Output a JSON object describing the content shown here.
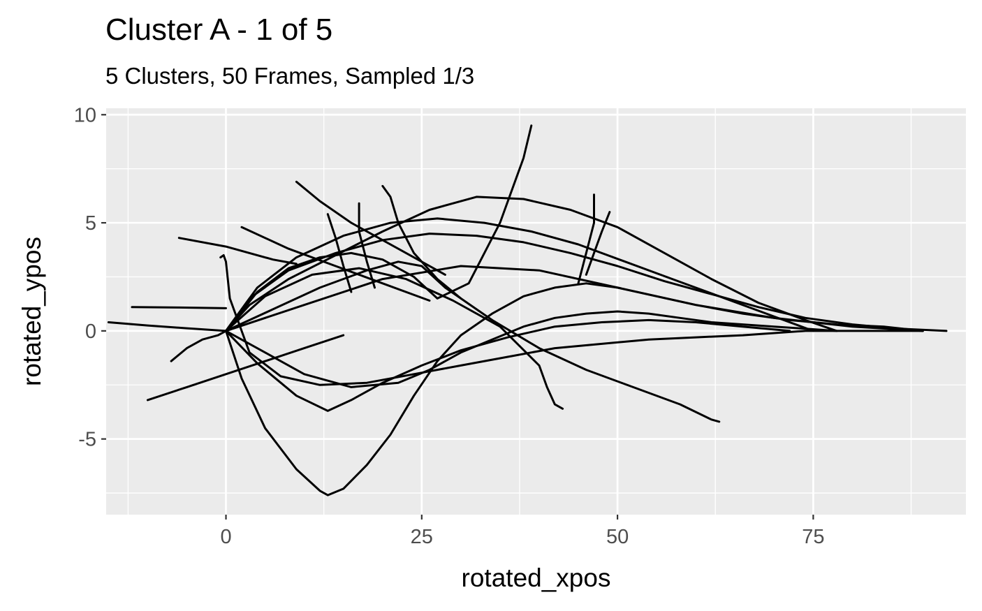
{
  "chart_data": {
    "type": "line",
    "title": "Cluster A - 1 of 5",
    "subtitle": "5 Clusters, 50 Frames, Sampled 1/3",
    "xlabel": "rotated_xpos",
    "ylabel": "rotated_ypos",
    "xlim": [
      -15.3,
      94.5
    ],
    "ylim": [
      -8.5,
      10.3
    ],
    "x_ticks": [
      0,
      25,
      50,
      75
    ],
    "x_tick_labels": [
      "0",
      "25",
      "50",
      "75"
    ],
    "y_ticks": [
      -5,
      0,
      5,
      10
    ],
    "y_tick_labels": [
      "-5",
      "0",
      "5",
      "10"
    ],
    "grid": true,
    "background": "#ebebeb",
    "grid_color": "#ffffff",
    "line_color": "#000000",
    "series": [
      {
        "x": [
          0,
          3,
          8,
          14,
          20,
          26,
          32,
          38,
          44,
          50,
          56,
          62,
          68,
          74,
          80,
          86,
          92
        ],
        "y": [
          0,
          1.5,
          2.8,
          3.6,
          4.2,
          4.5,
          4.4,
          4.1,
          3.6,
          3.0,
          2.3,
          1.7,
          1.1,
          0.6,
          0.3,
          0.1,
          0
        ]
      },
      {
        "x": [
          0,
          2,
          5,
          9,
          12,
          13,
          15,
          18,
          21,
          24,
          27,
          30,
          34,
          38,
          42,
          46,
          50,
          55,
          60,
          66,
          72,
          78,
          84,
          89
        ],
        "y": [
          0,
          -2.2,
          -4.5,
          -6.4,
          -7.4,
          -7.6,
          -7.3,
          -6.2,
          -4.8,
          -3.0,
          -1.4,
          -0.2,
          0.8,
          1.6,
          2.0,
          2.2,
          2.0,
          1.6,
          1.2,
          0.8,
          0.5,
          0.3,
          0.2,
          0
        ]
      },
      {
        "x": [
          0,
          4,
          8,
          12,
          16,
          20,
          24,
          27,
          31,
          35,
          38,
          39
        ],
        "y": [
          0,
          1.8,
          2.9,
          3.4,
          3.6,
          3.3,
          2.5,
          1.5,
          2.2,
          5.0,
          8.0,
          9.5
        ]
      },
      {
        "x": [
          -0.7,
          -0.3,
          0,
          0.5,
          3,
          7,
          12,
          18,
          24,
          30,
          36,
          42,
          48,
          54,
          60,
          66,
          70,
          74,
          78,
          82,
          86,
          89
        ],
        "y": [
          3.4,
          3.5,
          3.2,
          1.5,
          -1.0,
          -2.1,
          -2.5,
          -2.4,
          -2.0,
          -1.6,
          -1.2,
          -0.8,
          -0.6,
          -0.4,
          -0.3,
          -0.2,
          -0.1,
          0,
          0,
          0,
          0,
          0
        ]
      },
      {
        "x": [
          0,
          3,
          8,
          14,
          20,
          26,
          32,
          38,
          44,
          50,
          56,
          62,
          68,
          74,
          78
        ],
        "y": [
          0,
          1.2,
          2.4,
          3.5,
          4.6,
          5.6,
          6.2,
          6.1,
          5.6,
          4.8,
          3.6,
          2.4,
          1.3,
          0.5,
          0
        ]
      },
      {
        "x": [
          0,
          5,
          10,
          16,
          22,
          26,
          30,
          34,
          38,
          42,
          46,
          50,
          54,
          58,
          62,
          66,
          70,
          74,
          78
        ],
        "y": [
          0,
          -1.0,
          -2.0,
          -2.6,
          -2.4,
          -1.8,
          -1.0,
          -0.4,
          0.2,
          0.6,
          0.8,
          0.9,
          0.8,
          0.6,
          0.4,
          0.3,
          0.2,
          0.1,
          0
        ]
      },
      {
        "x": [
          0,
          4,
          9,
          15,
          21,
          27,
          33,
          39,
          45,
          51,
          57,
          63,
          69,
          75
        ],
        "y": [
          0,
          2.0,
          3.4,
          4.4,
          5.0,
          5.2,
          5.0,
          4.6,
          4.0,
          3.2,
          2.4,
          1.6,
          0.8,
          0
        ]
      },
      {
        "x": [
          0,
          4,
          9,
          13,
          16,
          20,
          25,
          30,
          36,
          42,
          48,
          54,
          60,
          66,
          72
        ],
        "y": [
          0,
          -1.5,
          -3.0,
          -3.7,
          -3.2,
          -2.4,
          -1.6,
          -0.9,
          -0.3,
          0.2,
          0.4,
          0.5,
          0.4,
          0.2,
          0
        ]
      },
      {
        "x": [
          0,
          6,
          12,
          18,
          22,
          25,
          28,
          34,
          40,
          46,
          52,
          58,
          62,
          63
        ],
        "y": [
          0,
          1.0,
          2.0,
          2.8,
          3.2,
          3.0,
          2.0,
          0.5,
          -0.8,
          -1.8,
          -2.6,
          -3.4,
          -4.1,
          -4.2
        ]
      },
      {
        "x": [
          0,
          5,
          11,
          17,
          23,
          29,
          35,
          40,
          41,
          42,
          43
        ],
        "y": [
          0,
          1.6,
          2.6,
          2.9,
          2.4,
          1.4,
          0.2,
          -1.6,
          -2.6,
          -3.4,
          -3.6
        ]
      },
      {
        "x": [
          -15,
          -10,
          -5,
          0
        ],
        "y": [
          0.4,
          0.25,
          0.12,
          0
        ]
      },
      {
        "x": [
          -12,
          -6,
          0
        ],
        "y": [
          1.1,
          1.08,
          1.05
        ]
      },
      {
        "x": [
          -6,
          0,
          6,
          9
        ],
        "y": [
          4.3,
          3.9,
          3.3,
          3.1
        ]
      },
      {
        "x": [
          -10,
          -5,
          0,
          5,
          10,
          15
        ],
        "y": [
          -3.2,
          -2.6,
          -2.0,
          -1.4,
          -0.8,
          -0.2
        ]
      },
      {
        "x": [
          -7,
          -5,
          -3,
          -1,
          0
        ],
        "y": [
          -1.4,
          -0.8,
          -0.4,
          -0.2,
          0
        ]
      },
      {
        "x": [
          9,
          12,
          16,
          22,
          28
        ],
        "y": [
          6.9,
          6.0,
          5.0,
          3.8,
          2.6
        ]
      },
      {
        "x": [
          2,
          8,
          14,
          20,
          26
        ],
        "y": [
          4.8,
          3.8,
          3.0,
          2.2,
          1.4
        ]
      },
      {
        "x": [
          20,
          21,
          22,
          24,
          27,
          30
        ],
        "y": [
          6.7,
          6.2,
          5.0,
          3.6,
          2.4,
          1.5
        ]
      },
      {
        "x": [
          13,
          14,
          15,
          16
        ],
        "y": [
          5.4,
          4.3,
          3.0,
          1.8
        ]
      },
      {
        "x": [
          17,
          17,
          18,
          19
        ],
        "y": [
          5.9,
          4.6,
          3.2,
          2.0
        ]
      },
      {
        "x": [
          47,
          47,
          46,
          45
        ],
        "y": [
          6.3,
          5.0,
          3.6,
          2.2
        ]
      },
      {
        "x": [
          49,
          48,
          47,
          46
        ],
        "y": [
          5.5,
          4.6,
          3.6,
          2.6
        ]
      },
      {
        "x": [
          0,
          10,
          20,
          30,
          40,
          50,
          60,
          70,
          80,
          89
        ],
        "y": [
          0,
          1.2,
          2.4,
          3.0,
          2.8,
          2.0,
          1.2,
          0.6,
          0.2,
          0
        ]
      }
    ]
  }
}
